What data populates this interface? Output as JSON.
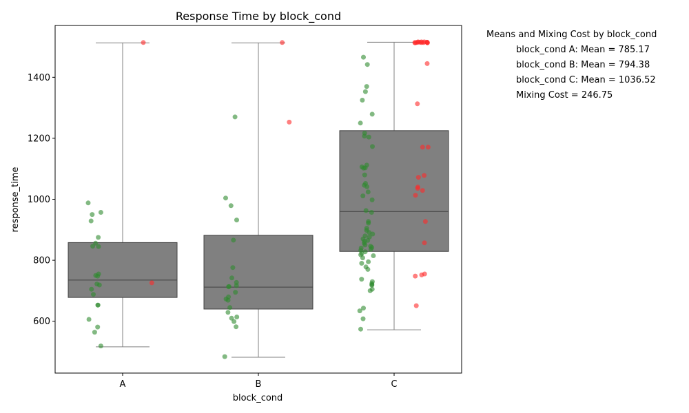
{
  "chart_data": {
    "type": "box",
    "title": "Response Time by block_cond",
    "xlabel": "block_cond",
    "ylabel": "response_time",
    "categories": [
      "A",
      "B",
      "C"
    ],
    "ylim": [
      430,
      1570
    ],
    "yticks": [
      600,
      800,
      1000,
      1200,
      1400
    ],
    "grid": false,
    "colors": {
      "box": "#808080",
      "box_edge": "#404040",
      "whisker": "#808080",
      "median": "#404040",
      "green_points": "#2e8b2e",
      "red_points": "#ff2a2a"
    },
    "boxes": [
      {
        "category": "A",
        "whislo": 516,
        "q1": 678,
        "median": 735,
        "q3": 858,
        "whishi": 1513
      },
      {
        "category": "B",
        "whislo": 482,
        "q1": 640,
        "median": 712,
        "q3": 882,
        "whishi": 1513
      },
      {
        "category": "C",
        "whislo": 572,
        "q1": 829,
        "median": 960,
        "q3": 1225,
        "whishi": 1515
      }
    ],
    "series": [
      {
        "color_key": "green_points",
        "points": {
          "A": [
            988,
            957,
            950,
            929,
            875,
            856,
            846,
            845,
            755,
            750,
            748,
            722,
            719,
            705,
            688,
            653,
            653,
            606,
            581,
            564,
            519
          ],
          "B": [
            1270,
            1004,
            979,
            932,
            866,
            776,
            742,
            727,
            717,
            714,
            713,
            695,
            680,
            673,
            669,
            645,
            629,
            614,
            610,
            599,
            582,
            484
          ],
          "C": [
            1466,
            1442,
            1370,
            1353,
            1325,
            1279,
            1250,
            1217,
            1207,
            1204,
            1173,
            1112,
            1106,
            1103,
            1102,
            1080,
            1052,
            1046,
            1041,
            1024,
            1011,
            998,
            963,
            957,
            927,
            922,
            905,
            898,
            891,
            886,
            880,
            876,
            870,
            865,
            862,
            856,
            850,
            846,
            842,
            840,
            836,
            832,
            828,
            822,
            818,
            815,
            808,
            795,
            790,
            778,
            770,
            738,
            730,
            724,
            720,
            718,
            705,
            700,
            643,
            634,
            608,
            574
          ]
        }
      },
      {
        "color_key": "red_points",
        "points": {
          "A": [
            1514,
            726
          ],
          "B": [
            1514,
            1253
          ],
          "C": [
            1516,
            1516,
            1516,
            1515,
            1515,
            1515,
            1515,
            1514,
            1514,
            1514,
            1514,
            1514,
            1513,
            1513,
            1445,
            1313,
            1171,
            1171,
            1078,
            1072,
            1040,
            1036,
            1029,
            1013,
            927,
            857,
            755,
            752,
            748,
            651
          ]
        }
      }
    ],
    "annotations": {
      "header": "Means and Mixing Cost by block_cond",
      "lines": [
        "block_cond A: Mean = 785.17",
        "block_cond B: Mean = 794.38",
        "block_cond C: Mean = 1036.52",
        "Mixing Cost = 246.75"
      ]
    }
  }
}
